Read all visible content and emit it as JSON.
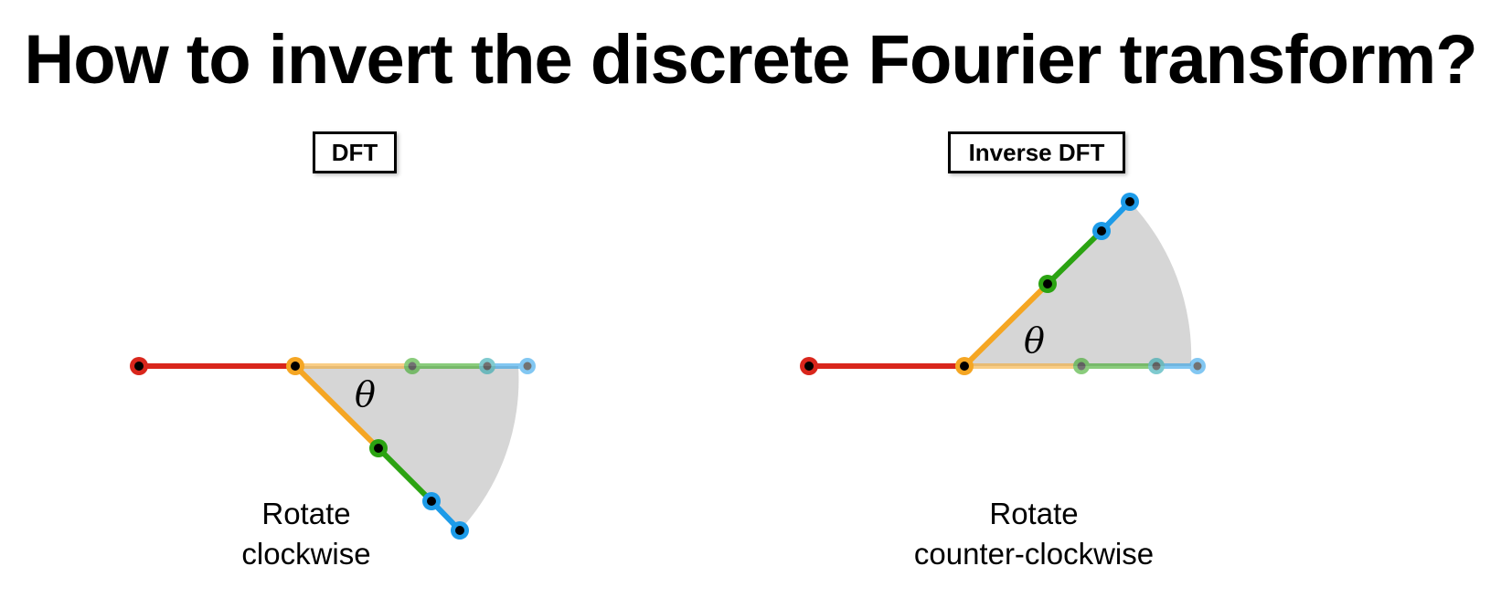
{
  "title": "How to invert the discrete Fourier transform?",
  "panels": [
    {
      "label": "DFT",
      "angle_symbol": "θ",
      "caption_line1": "Rotate",
      "caption_line2": "clockwise"
    },
    {
      "label": "Inverse DFT",
      "angle_symbol": "θ",
      "caption_line1": "Rotate",
      "caption_line2": "counter-clockwise"
    }
  ],
  "colors": {
    "red": "#d9261c",
    "orange": "#f5a623",
    "green": "#2ba312",
    "teal": "#18a0a8",
    "blue": "#1d9be8",
    "sector": "#d6d6d6",
    "dot_center": "#000000"
  }
}
